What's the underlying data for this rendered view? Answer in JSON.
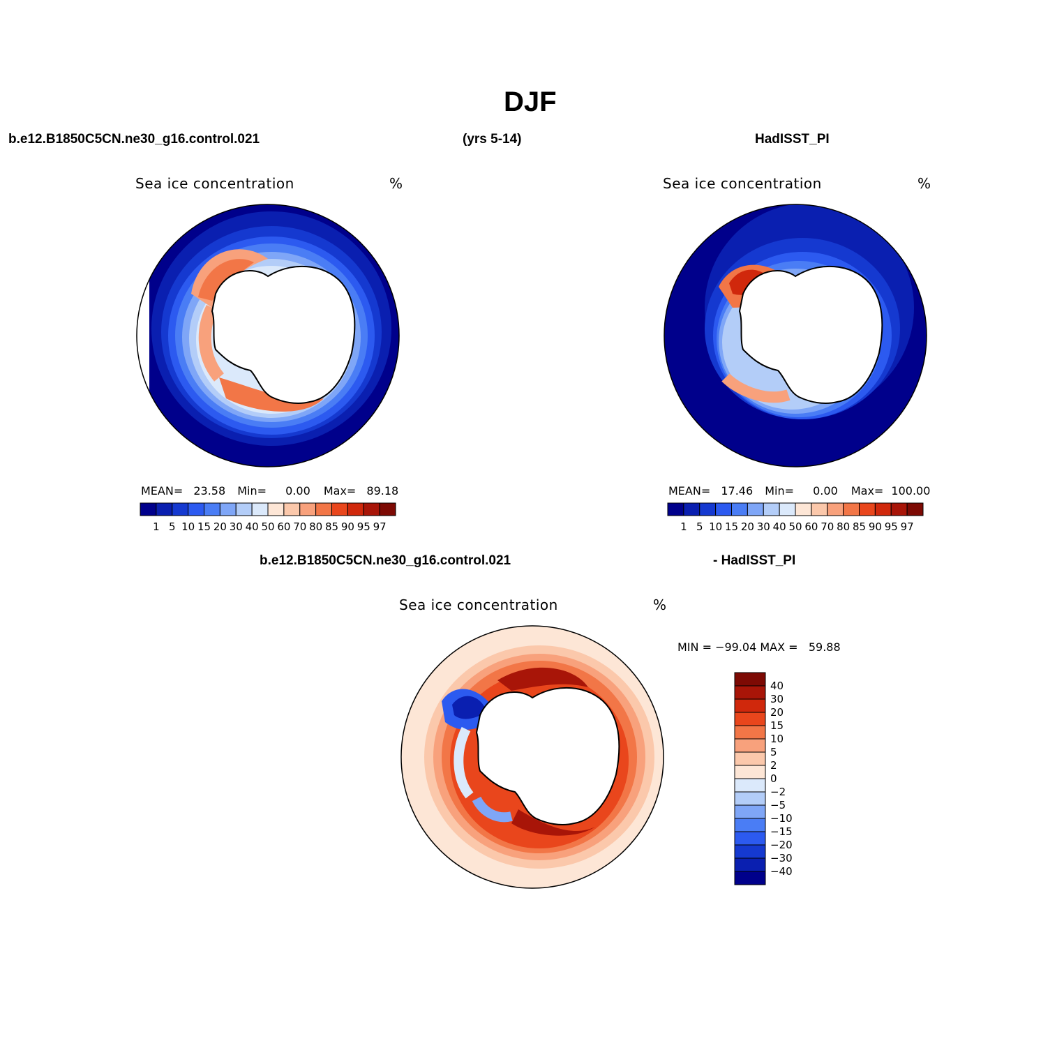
{
  "title": "DJF",
  "header": {
    "case_name": "b.e12.B1850C5CN.ne30_g16.control.021",
    "years": "(yrs 5-14)",
    "obs_name": "HadISST_PI"
  },
  "panels": [
    {
      "variable": "Sea ice concentration",
      "units": "%",
      "mean_label": "MEAN=",
      "mean": "23.58",
      "min_label": "Min=",
      "min": "0.00",
      "max_label": "Max=",
      "max": "89.18"
    },
    {
      "variable": "Sea ice concentration",
      "units": "%",
      "mean_label": "MEAN=",
      "mean": "17.46",
      "min_label": "Min=",
      "min": "0.00",
      "max_label": "Max=",
      "max": "100.00"
    }
  ],
  "diff_panel": {
    "case_name": "b.e12.B1850C5CN.ne30_g16.control.021",
    "obs_name": "- HadISST_PI",
    "variable": "Sea ice concentration",
    "units": "%",
    "minmax_text": "MIN = −99.04 MAX =   59.88"
  },
  "colorbar_levels": [
    "1",
    "5",
    "10",
    "15",
    "20",
    "30",
    "40",
    "50",
    "60",
    "70",
    "80",
    "85",
    "90",
    "95",
    "97"
  ],
  "colorbar_colors": [
    "#00008b",
    "#0a1fb0",
    "#1539d0",
    "#2c5af0",
    "#4a7df5",
    "#7fa6f7",
    "#b3cdf8",
    "#dbe9fb",
    "#fde6d6",
    "#fbc8ab",
    "#f8a17c",
    "#f27647",
    "#e9461c",
    "#d0280c",
    "#a81508",
    "#7d0a04"
  ],
  "diff_levels": [
    "40",
    "30",
    "20",
    "15",
    "10",
    "5",
    "2",
    "0",
    "−2",
    "−5",
    "−10",
    "−15",
    "−20",
    "−30",
    "−40"
  ],
  "diff_colors": [
    "#7d0a04",
    "#a81508",
    "#d0280c",
    "#e9461c",
    "#f27647",
    "#f8a17c",
    "#fbc8ab",
    "#fde6d6",
    "#dbe9fb",
    "#b3cdf8",
    "#7fa6f7",
    "#4a7df5",
    "#2c5af0",
    "#1539d0",
    "#0a1fb0",
    "#00008b"
  ]
}
